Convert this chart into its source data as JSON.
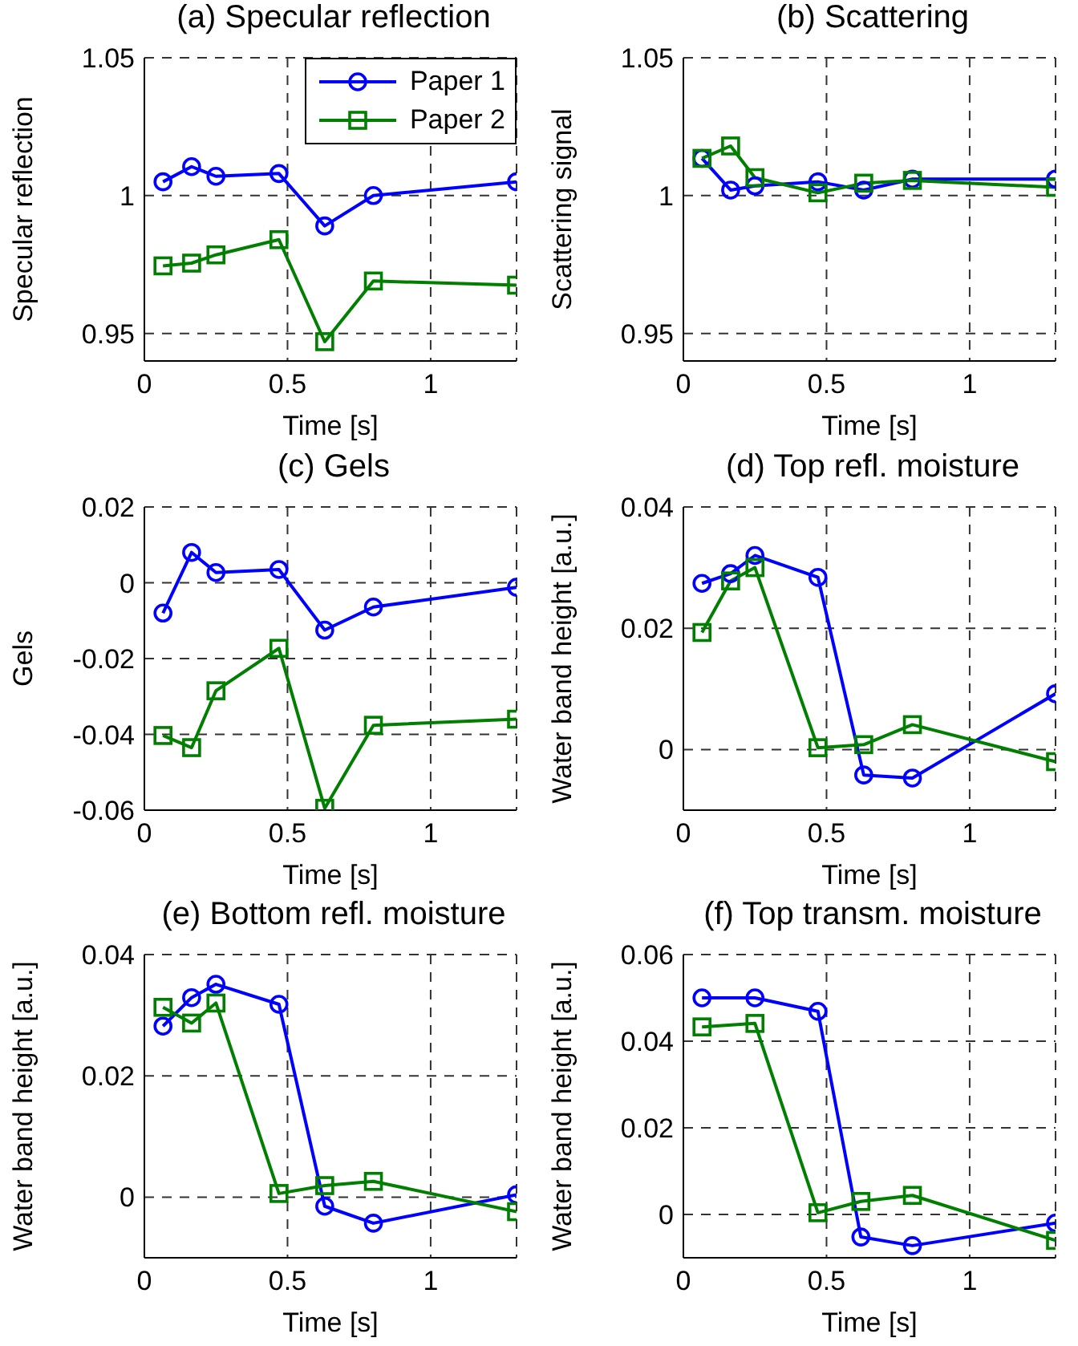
{
  "chart_data": [
    {
      "type": "line",
      "title": "(a)  Specular reflection",
      "xlabel": "Time [s]",
      "ylabel": "Specular reflection",
      "x": [
        0.065,
        0.165,
        0.25,
        0.47,
        0.63,
        0.8,
        1.3
      ],
      "xlim": [
        0,
        1.3
      ],
      "xticks": [
        0,
        0.5,
        1
      ],
      "ylim": [
        0.94,
        1.05
      ],
      "yticks": [
        0.95,
        1,
        1.05
      ],
      "grid": true,
      "legend": "top right",
      "series": [
        {
          "name": "Paper 1",
          "color": "#0000ff",
          "marker": "circle",
          "values": [
            1.005,
            1.0105,
            1.007,
            1.008,
            0.989,
            1.0,
            1.005
          ]
        },
        {
          "name": "Paper 2",
          "color": "#007f00",
          "marker": "square",
          "values": [
            0.9745,
            0.9755,
            0.9785,
            0.984,
            0.947,
            0.969,
            0.9675
          ]
        }
      ]
    },
    {
      "type": "line",
      "title": "(b)  Scattering",
      "xlabel": "Time [s]",
      "ylabel": "Scattering signal",
      "x": [
        0.065,
        0.165,
        0.25,
        0.47,
        0.63,
        0.8,
        1.3
      ],
      "xlim": [
        0,
        1.3
      ],
      "xticks": [
        0,
        0.5,
        1
      ],
      "ylim": [
        0.94,
        1.05
      ],
      "yticks": [
        0.95,
        1,
        1.05
      ],
      "grid": true,
      "series": [
        {
          "color": "#0000ff",
          "marker": "circle",
          "values": [
            1.0135,
            1.002,
            1.0035,
            1.005,
            1.002,
            1.006,
            1.006
          ]
        },
        {
          "color": "#007f00",
          "marker": "square",
          "values": [
            1.0135,
            1.018,
            1.0065,
            1.001,
            1.0045,
            1.0055,
            1.003
          ]
        }
      ]
    },
    {
      "type": "line",
      "title": "(c)  Gels",
      "xlabel": "Time [s]",
      "ylabel": "Gels",
      "x": [
        0.065,
        0.165,
        0.25,
        0.47,
        0.63,
        0.8,
        1.3
      ],
      "xlim": [
        0,
        1.3
      ],
      "xticks": [
        0,
        0.5,
        1
      ],
      "ylim": [
        -0.06,
        0.02
      ],
      "yticks": [
        -0.06,
        -0.04,
        -0.02,
        0,
        0.02
      ],
      "grid": true,
      "series": [
        {
          "color": "#0000ff",
          "marker": "circle",
          "values": [
            -0.008,
            0.008,
            0.0027,
            0.0035,
            -0.0125,
            -0.0064,
            -0.0012
          ]
        },
        {
          "color": "#007f00",
          "marker": "square",
          "values": [
            -0.0403,
            -0.0435,
            -0.0285,
            -0.0173,
            -0.0595,
            -0.0376,
            -0.036
          ]
        }
      ]
    },
    {
      "type": "line",
      "title": "(d)  Top refl. moisture",
      "xlabel": "Time [s]",
      "ylabel": "Water band height [a.u.]",
      "x": [
        0.065,
        0.165,
        0.25,
        0.47,
        0.63,
        0.8,
        1.3
      ],
      "xlim": [
        0,
        1.3
      ],
      "xticks": [
        0,
        0.5,
        1
      ],
      "ylim": [
        -0.01,
        0.04
      ],
      "yticks": [
        0,
        0.02,
        0.04
      ],
      "grid": true,
      "series": [
        {
          "color": "#0000ff",
          "marker": "circle",
          "values": [
            0.0274,
            0.029,
            0.032,
            0.0284,
            -0.0042,
            -0.0047,
            0.0092
          ]
        },
        {
          "color": "#007f00",
          "marker": "square",
          "values": [
            0.0193,
            0.0278,
            0.03,
            0.0003,
            0.0008,
            0.0041,
            -0.002
          ]
        }
      ]
    },
    {
      "type": "line",
      "title": "(e)  Bottom refl. moisture",
      "xlabel": "Time [s]",
      "ylabel": "Water band height [a.u.]",
      "x": [
        0.065,
        0.165,
        0.25,
        0.47,
        0.63,
        0.8,
        1.3
      ],
      "xlim": [
        0,
        1.3
      ],
      "xticks": [
        0,
        0.5,
        1
      ],
      "ylim": [
        -0.01,
        0.04
      ],
      "yticks": [
        0,
        0.02,
        0.04
      ],
      "grid": true,
      "series": [
        {
          "color": "#0000ff",
          "marker": "circle",
          "values": [
            0.0282,
            0.0329,
            0.0351,
            0.0318,
            -0.0015,
            -0.0043,
            0.0004
          ]
        },
        {
          "color": "#007f00",
          "marker": "square",
          "values": [
            0.0313,
            0.0287,
            0.032,
            0.0006,
            0.0019,
            0.0026,
            -0.0024
          ]
        }
      ]
    },
    {
      "type": "line",
      "title": "(f)  Top transm. moisture",
      "xlabel": "Time [s]",
      "ylabel": "Water band height [a.u.]",
      "x": [
        0.065,
        0.25,
        0.47,
        0.62,
        0.8,
        1.3
      ],
      "xlim": [
        0,
        1.3
      ],
      "xticks": [
        0,
        0.5,
        1
      ],
      "ylim": [
        -0.01,
        0.06
      ],
      "yticks": [
        0,
        0.02,
        0.04,
        0.06
      ],
      "grid": true,
      "series": [
        {
          "color": "#0000ff",
          "marker": "circle",
          "values": [
            0.05,
            0.05,
            0.0469,
            -0.0052,
            -0.0072,
            -0.002
          ]
        },
        {
          "color": "#007f00",
          "marker": "square",
          "values": [
            0.0433,
            0.0441,
            0.0004,
            0.003,
            0.0044,
            -0.006
          ]
        }
      ]
    }
  ]
}
